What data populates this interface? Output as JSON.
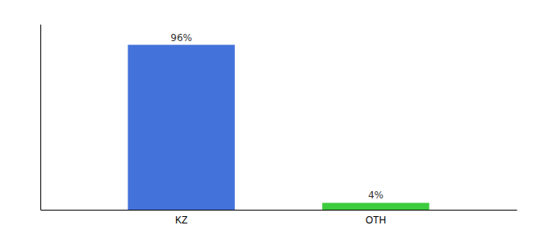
{
  "chart_data": {
    "type": "bar",
    "categories": [
      "KZ",
      "OTH"
    ],
    "values": [
      96,
      4
    ],
    "value_labels": [
      "96%",
      "4%"
    ],
    "data_labels": true,
    "colors": [
      "#4472db",
      "#3dcc3d"
    ],
    "ylim": [
      0,
      108
    ],
    "tick_labels": "x",
    "grid": false
  }
}
